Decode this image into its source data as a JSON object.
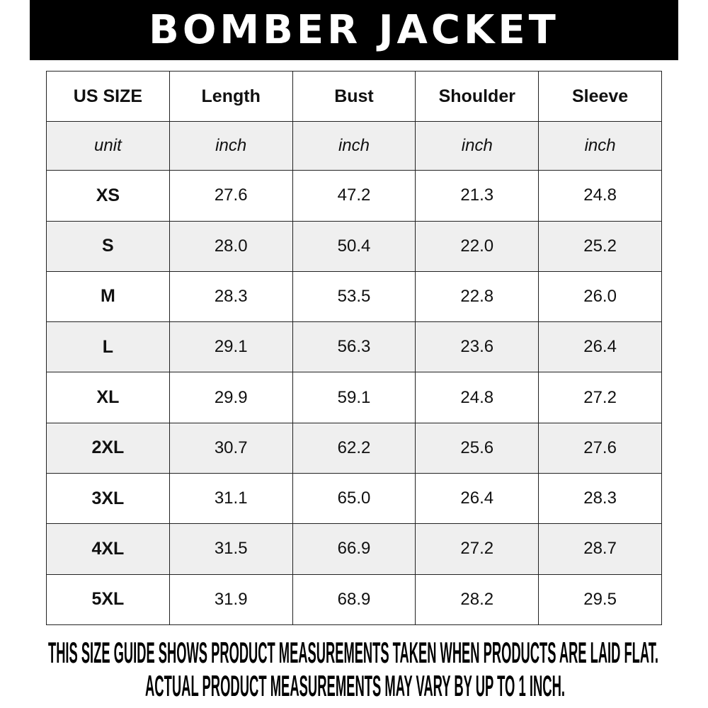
{
  "title": "BOMBER JACKET",
  "table": {
    "headers": [
      "US SIZE",
      "Length",
      "Bust",
      "Shoulder",
      "Sleeve"
    ],
    "units": [
      "unit",
      "inch",
      "inch",
      "inch",
      "inch"
    ],
    "rows": [
      [
        "XS",
        "27.6",
        "47.2",
        "21.3",
        "24.8"
      ],
      [
        "S",
        "28.0",
        "50.4",
        "22.0",
        "25.2"
      ],
      [
        "M",
        "28.3",
        "53.5",
        "22.8",
        "26.0"
      ],
      [
        "L",
        "29.1",
        "56.3",
        "23.6",
        "26.4"
      ],
      [
        "XL",
        "29.9",
        "59.1",
        "24.8",
        "27.2"
      ],
      [
        "2XL",
        "30.7",
        "62.2",
        "25.6",
        "27.6"
      ],
      [
        "3XL",
        "31.1",
        "65.0",
        "26.4",
        "28.3"
      ],
      [
        "4XL",
        "31.5",
        "66.9",
        "27.2",
        "28.7"
      ],
      [
        "5XL",
        "31.9",
        "68.9",
        "28.2",
        "29.5"
      ]
    ]
  },
  "footer": {
    "line1": "THIS SIZE GUIDE SHOWS PRODUCT MEASUREMENTS TAKEN WHEN PRODUCTS ARE LAID FLAT.",
    "line2": "ACTUAL PRODUCT MEASUREMENTS MAY VARY BY UP TO 1 INCH."
  },
  "colors": {
    "banner": "#000000",
    "alt_row": "#efefef"
  }
}
